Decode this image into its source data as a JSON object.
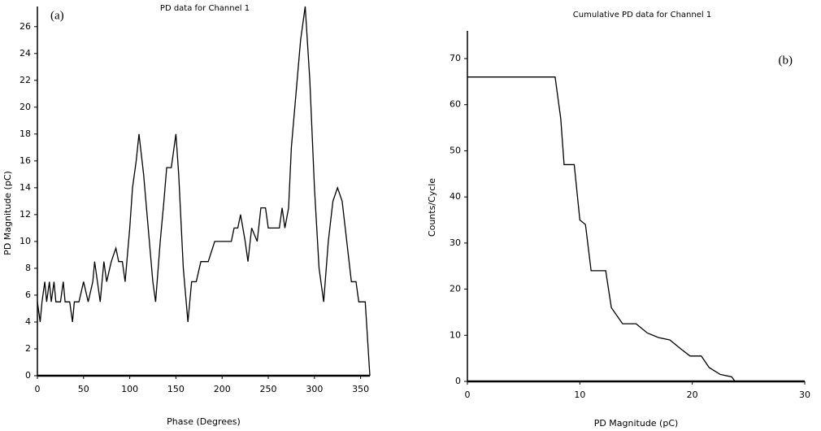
{
  "chart_data": [
    {
      "type": "line",
      "title": "PD data for Channel 1",
      "annotation": "(a)",
      "xlabel": "Phase (Degrees)",
      "ylabel": "PD Magnitude (pC)",
      "x": [
        0,
        3,
        5,
        8,
        10,
        13,
        15,
        18,
        20,
        25,
        28,
        30,
        35,
        38,
        40,
        45,
        50,
        55,
        60,
        62,
        65,
        68,
        72,
        75,
        80,
        85,
        88,
        92,
        95,
        100,
        103,
        107,
        110,
        115,
        120,
        125,
        128,
        133,
        137,
        140,
        145,
        148,
        150,
        153,
        158,
        163,
        167,
        172,
        177,
        185,
        192,
        210,
        213,
        217,
        220,
        225,
        228,
        232,
        238,
        242,
        247,
        250,
        262,
        265,
        268,
        272,
        275,
        280,
        285,
        290,
        295,
        300,
        305,
        310,
        315,
        320,
        325,
        330,
        335,
        340,
        345,
        348,
        355,
        360
      ],
      "values": [
        5.5,
        4,
        5.5,
        7,
        5.5,
        7,
        5.5,
        7,
        5.5,
        5.5,
        7,
        5.5,
        5.5,
        4,
        5.5,
        5.5,
        7,
        5.5,
        7,
        8.5,
        7,
        5.5,
        8.5,
        7,
        8.5,
        9.5,
        8.5,
        8.5,
        7,
        11,
        14,
        16,
        18,
        15,
        11,
        7,
        5.5,
        10,
        13,
        15.5,
        15.5,
        17,
        18,
        15,
        8,
        4,
        7,
        7,
        8.5,
        8.5,
        10,
        10,
        11,
        11,
        12,
        10,
        8.5,
        11,
        10,
        12.5,
        12.5,
        11,
        11,
        12.5,
        11,
        12.5,
        17,
        21,
        25,
        27.5,
        22,
        14,
        8,
        5.5,
        10,
        13,
        14,
        13,
        10,
        7,
        7,
        5.5,
        5.5,
        0
      ],
      "color": "#000000",
      "xlim": [
        0,
        360
      ],
      "ylim": [
        0,
        27.5
      ],
      "xticks": [
        0,
        50,
        100,
        150,
        200,
        250,
        300,
        350
      ],
      "yticks": [
        0,
        2,
        4,
        6,
        8,
        10,
        12,
        14,
        16,
        18,
        20,
        22,
        24,
        26
      ]
    },
    {
      "type": "line",
      "title": "Cumulative PD data for Channel 1",
      "annotation": "(b)",
      "xlabel": "PD Magnitude (pC)",
      "ylabel": "Counts/Cycle",
      "x": [
        0,
        7.8,
        8.3,
        8.6,
        9.5,
        10,
        10.5,
        11,
        12.3,
        12.8,
        13.8,
        15,
        16,
        17,
        18,
        19,
        19.8,
        20.8,
        21.5,
        22.5,
        23.5,
        23.8
      ],
      "values": [
        66,
        66,
        57,
        47,
        47,
        35,
        34,
        24,
        24,
        16,
        12.5,
        12.5,
        10.5,
        9.5,
        9,
        7,
        5.5,
        5.5,
        3,
        1.5,
        1,
        0
      ],
      "color": "#000000",
      "xlim": [
        0,
        30
      ],
      "ylim": [
        0,
        76
      ],
      "xticks": [
        0,
        10,
        20,
        30
      ],
      "yticks": [
        0,
        10,
        20,
        30,
        40,
        50,
        60,
        70
      ]
    }
  ]
}
